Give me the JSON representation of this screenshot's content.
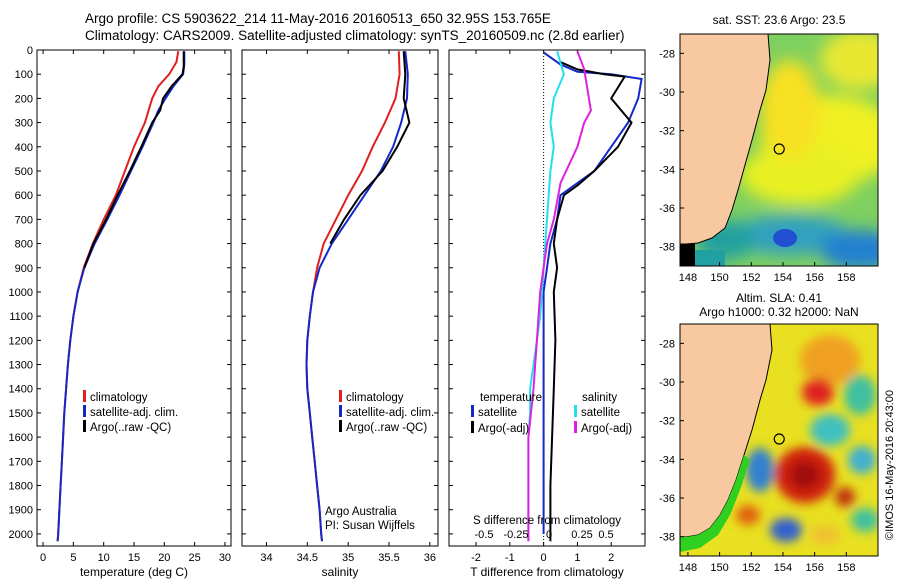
{
  "titles": {
    "line1": "Argo profile: CS 5903622_214 11-May-2016 20160513_650 32.95S 153.765E",
    "line2": "Climatology: CARS2009. Satellite-adjusted climatology: synTS_20160509.nc (2.8d earlier)"
  },
  "colors": {
    "climatology": "#e02020",
    "satellite": "#1428c8",
    "argo": "#000000",
    "salinity_satellite": "#20e0f0",
    "salinity_argo": "#e020e0",
    "land": "#f8c8a0"
  },
  "chart_data": [
    {
      "type": "line",
      "xlabel": "temperature (deg C)",
      "xlim": [
        -1,
        31
      ],
      "xticks": [
        "0",
        "5",
        "10",
        "15",
        "20",
        "25",
        "30"
      ],
      "ylim": [
        0,
        2050
      ],
      "yticks": [
        "0",
        "100",
        "200",
        "300",
        "400",
        "500",
        "600",
        "700",
        "800",
        "900",
        "1000",
        "1100",
        "1200",
        "1300",
        "1400",
        "1500",
        "1600",
        "1700",
        "1800",
        "1900",
        "2000"
      ],
      "legend": [
        "climatology",
        "satellite-adj. clim.",
        "Argo(..raw -QC)"
      ],
      "series": [
        {
          "color": "#e02020",
          "points": [
            [
              22.3,
              5
            ],
            [
              22.0,
              50
            ],
            [
              20.8,
              100
            ],
            [
              19.0,
              150
            ],
            [
              18.0,
              200
            ],
            [
              16.8,
              300
            ],
            [
              15.0,
              400
            ],
            [
              13.5,
              500
            ],
            [
              12.0,
              600
            ],
            [
              10.0,
              700
            ],
            [
              8.2,
              800
            ],
            [
              6.7,
              900
            ],
            [
              5.7,
              1000
            ],
            [
              5.0,
              1100
            ],
            [
              4.5,
              1200
            ],
            [
              4.1,
              1300
            ],
            [
              3.8,
              1400
            ],
            [
              3.5,
              1500
            ],
            [
              3.3,
              1600
            ],
            [
              3.1,
              1700
            ],
            [
              2.9,
              1800
            ],
            [
              2.7,
              1900
            ],
            [
              2.5,
              2000
            ],
            [
              2.4,
              2030
            ]
          ]
        },
        {
          "color": "#1428c8",
          "points": [
            [
              23.3,
              5
            ],
            [
              23.3,
              60
            ],
            [
              23.1,
              100
            ],
            [
              21.5,
              150
            ],
            [
              20.2,
              200
            ],
            [
              19.0,
              250
            ],
            [
              18.2,
              300
            ],
            [
              16.4,
              400
            ],
            [
              14.5,
              500
            ],
            [
              12.6,
              600
            ],
            [
              10.6,
              700
            ],
            [
              8.5,
              800
            ],
            [
              6.8,
              900
            ],
            [
              5.7,
              1000
            ],
            [
              5.0,
              1100
            ],
            [
              4.5,
              1200
            ],
            [
              4.1,
              1300
            ],
            [
              3.8,
              1400
            ],
            [
              3.5,
              1500
            ],
            [
              3.3,
              1600
            ],
            [
              3.1,
              1700
            ],
            [
              2.9,
              1800
            ],
            [
              2.7,
              1900
            ],
            [
              2.5,
              2000
            ],
            [
              2.4,
              2030
            ]
          ]
        },
        {
          "color": "#000000",
          "points": [
            [
              23.2,
              5
            ],
            [
              23.2,
              70
            ],
            [
              23.0,
              100
            ],
            [
              21.2,
              150
            ],
            [
              19.8,
              200
            ],
            [
              19.3,
              250
            ],
            [
              18.0,
              300
            ],
            [
              16.2,
              400
            ],
            [
              14.3,
              500
            ],
            [
              12.3,
              600
            ],
            [
              10.4,
              700
            ],
            [
              8.3,
              800
            ],
            [
              6.8,
              900
            ]
          ]
        }
      ]
    },
    {
      "type": "line",
      "xlabel": "salinity",
      "xlim": [
        33.7,
        36.1
      ],
      "xticks": [
        "34",
        "34.5",
        "35",
        "35.5",
        "36"
      ],
      "ylim": [
        0,
        2050
      ],
      "legend": [
        "climatology",
        "satellite-adj. clim.",
        "Argo(..raw -QC)"
      ],
      "annotation": [
        "Argo Australia",
        "PI: Susan Wijffels"
      ],
      "series": [
        {
          "color": "#e02020",
          "points": [
            [
              35.62,
              5
            ],
            [
              35.63,
              100
            ],
            [
              35.58,
              200
            ],
            [
              35.45,
              300
            ],
            [
              35.3,
              400
            ],
            [
              35.17,
              500
            ],
            [
              35.0,
              600
            ],
            [
              34.85,
              700
            ],
            [
              34.7,
              800
            ],
            [
              34.62,
              900
            ],
            [
              34.57,
              1000
            ],
            [
              34.53,
              1100
            ],
            [
              34.5,
              1200
            ],
            [
              34.49,
              1300
            ],
            [
              34.5,
              1400
            ],
            [
              34.53,
              1500
            ],
            [
              34.56,
              1600
            ],
            [
              34.59,
              1700
            ],
            [
              34.62,
              1800
            ],
            [
              34.65,
              1900
            ],
            [
              34.67,
              2000
            ],
            [
              34.68,
              2030
            ]
          ]
        },
        {
          "color": "#1428c8",
          "points": [
            [
              35.7,
              5
            ],
            [
              35.73,
              100
            ],
            [
              35.72,
              200
            ],
            [
              35.65,
              300
            ],
            [
              35.55,
              400
            ],
            [
              35.4,
              500
            ],
            [
              35.2,
              600
            ],
            [
              35.0,
              700
            ],
            [
              34.8,
              800
            ],
            [
              34.65,
              900
            ],
            [
              34.57,
              1000
            ],
            [
              34.53,
              1100
            ],
            [
              34.5,
              1200
            ],
            [
              34.49,
              1300
            ],
            [
              34.5,
              1400
            ],
            [
              34.53,
              1500
            ],
            [
              34.56,
              1600
            ],
            [
              34.59,
              1700
            ],
            [
              34.62,
              1800
            ],
            [
              34.65,
              1900
            ],
            [
              34.67,
              2000
            ],
            [
              34.68,
              2030
            ]
          ]
        },
        {
          "color": "#000000",
          "points": [
            [
              35.68,
              5
            ],
            [
              35.7,
              100
            ],
            [
              35.68,
              200
            ],
            [
              35.75,
              300
            ],
            [
              35.6,
              400
            ],
            [
              35.42,
              500
            ],
            [
              35.15,
              600
            ],
            [
              34.95,
              700
            ],
            [
              34.78,
              800
            ]
          ]
        }
      ]
    },
    {
      "type": "line",
      "xlabel": "T difference from climatology",
      "xlabel_top": "S difference from climatology",
      "xlim": [
        -2.8,
        3.0
      ],
      "xticks": [
        "-2",
        "-1",
        "0",
        "1",
        "2"
      ],
      "xticks_top": [
        "-0.5",
        "-0.25",
        "0",
        "0.25",
        "0.5"
      ],
      "ylim": [
        0,
        2050
      ],
      "legend_headers": [
        "temperature",
        "salinity"
      ],
      "legend": [
        "satellite",
        "Argo(-adj)",
        "satellite",
        "Argo(-adj)"
      ],
      "series": [
        {
          "color": "#1428c8",
          "points": [
            [
              0.0,
              10
            ],
            [
              0.5,
              60
            ],
            [
              1.0,
              90
            ],
            [
              2.0,
              100
            ],
            [
              2.9,
              120
            ],
            [
              2.8,
              200
            ],
            [
              2.5,
              300
            ],
            [
              2.0,
              400
            ],
            [
              1.5,
              500
            ],
            [
              1.0,
              550
            ],
            [
              0.5,
              600
            ],
            [
              0.4,
              700
            ],
            [
              0.2,
              800
            ],
            [
              0.1,
              900
            ],
            [
              0.0,
              1000
            ],
            [
              0.0,
              2000
            ]
          ]
        },
        {
          "color": "#000000",
          "points": [
            [
              0.5,
              50
            ],
            [
              1.0,
              80
            ],
            [
              1.8,
              100
            ],
            [
              2.4,
              110
            ],
            [
              2.0,
              200
            ],
            [
              2.6,
              300
            ],
            [
              2.2,
              400
            ],
            [
              1.5,
              500
            ],
            [
              1.0,
              560
            ],
            [
              0.6,
              600
            ],
            [
              0.4,
              700
            ],
            [
              0.3,
              800
            ],
            [
              0.4,
              900
            ],
            [
              0.3,
              1000
            ],
            [
              0.35,
              1200
            ],
            [
              0.3,
              1400
            ],
            [
              0.25,
              1600
            ],
            [
              0.2,
              1800
            ],
            [
              0.2,
              2030
            ]
          ]
        },
        {
          "color": "#20e0f0",
          "points": [
            [
              0.4,
              5
            ],
            [
              0.6,
              100
            ],
            [
              0.3,
              200
            ],
            [
              0.2,
              300
            ],
            [
              0.3,
              400
            ],
            [
              0.2,
              500
            ],
            [
              0.15,
              600
            ],
            [
              0.1,
              700
            ],
            [
              0.05,
              800
            ],
            [
              0.0,
              900
            ],
            [
              -0.05,
              1000
            ],
            [
              -0.1,
              1100
            ],
            [
              -0.2,
              1200
            ],
            [
              -0.3,
              1300
            ],
            [
              -0.4,
              1400
            ],
            [
              -0.4,
              1500
            ],
            [
              -0.45,
              1600
            ],
            [
              -0.45,
              1700
            ],
            [
              -0.45,
              1800
            ],
            [
              -0.45,
              1900
            ],
            [
              -0.45,
              2030
            ]
          ]
        },
        {
          "color": "#e020e0",
          "points": [
            [
              1.0,
              5
            ],
            [
              1.2,
              80
            ],
            [
              1.4,
              250
            ],
            [
              1.2,
              300
            ],
            [
              1.0,
              400
            ],
            [
              0.5,
              550
            ],
            [
              0.3,
              700
            ],
            [
              0.1,
              800
            ],
            [
              0.0,
              900
            ],
            [
              -0.1,
              1000
            ],
            [
              -0.2,
              1200
            ],
            [
              -0.3,
              1400
            ],
            [
              -0.45,
              1600
            ],
            [
              -0.45,
              1800
            ],
            [
              -0.45,
              2030
            ]
          ]
        }
      ]
    },
    {
      "type": "heatmap",
      "title": "sat. SST: 23.6 Argo: 23.5",
      "xlim": [
        147.5,
        160
      ],
      "ylim": [
        -39,
        -27
      ],
      "xticks": [
        "148",
        "150",
        "152",
        "154",
        "156",
        "158"
      ],
      "yticks": [
        "-28",
        "-30",
        "-32",
        "-34",
        "-36",
        "-38"
      ],
      "marker": [
        153.765,
        -32.95
      ]
    },
    {
      "type": "heatmap",
      "title": "Altim. SLA: 0.41",
      "subtitle": "Argo h1000: 0.32 h2000: NaN",
      "xlim": [
        147.5,
        160
      ],
      "ylim": [
        -39,
        -27
      ],
      "xticks": [
        "148",
        "150",
        "152",
        "154",
        "156",
        "158"
      ],
      "yticks": [
        "-28",
        "-30",
        "-32",
        "-34",
        "-36",
        "-38"
      ],
      "marker": [
        153.765,
        -32.95
      ]
    }
  ],
  "footer": {
    "credit": "©IMOS 16-May-2016 20:43:00"
  }
}
